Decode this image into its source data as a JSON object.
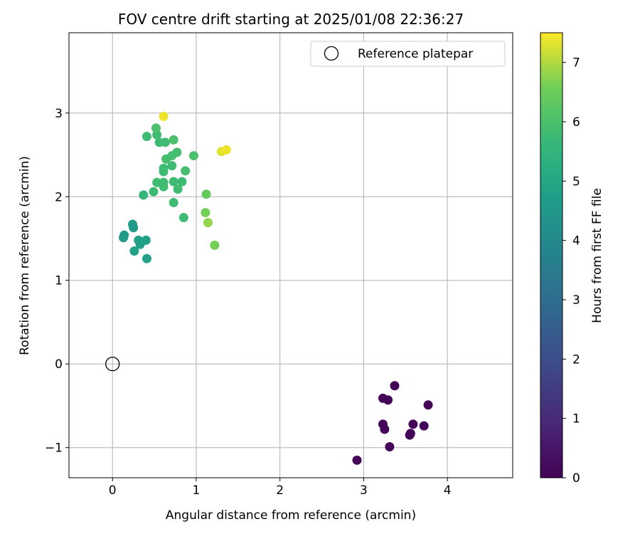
{
  "chart_data": {
    "type": "scatter",
    "title": "FOV centre drift starting at 2025/01/08 22:36:27",
    "xlabel": "Angular distance from reference (arcmin)",
    "ylabel": "Rotation from reference (arcmin)",
    "xlim": [
      -0.52,
      4.78
    ],
    "ylim": [
      -1.36,
      3.96
    ],
    "xticks": [
      0,
      1,
      2,
      3,
      4
    ],
    "yticks": [
      -1,
      0,
      1,
      2,
      3
    ],
    "grid": true,
    "legend": {
      "label": "Reference platepar",
      "placement": "top-right"
    },
    "reference_point": {
      "x": 0,
      "y": 0
    },
    "colorbar": {
      "label": "Hours from first FF file",
      "range": [
        0,
        7.5
      ],
      "ticks": [
        0,
        1,
        2,
        3,
        4,
        5,
        6,
        7
      ],
      "colormap": "viridis"
    },
    "points": [
      {
        "x": 3.37,
        "y": -0.26,
        "h": 0.1
      },
      {
        "x": 3.23,
        "y": -0.41,
        "h": 0.1
      },
      {
        "x": 3.29,
        "y": -0.43,
        "h": 0.1
      },
      {
        "x": 3.77,
        "y": -0.49,
        "h": 0.1
      },
      {
        "x": 3.23,
        "y": -0.72,
        "h": 0.1
      },
      {
        "x": 3.59,
        "y": -0.72,
        "h": 0.1
      },
      {
        "x": 3.72,
        "y": -0.74,
        "h": 0.1
      },
      {
        "x": 3.25,
        "y": -0.78,
        "h": 0.1
      },
      {
        "x": 3.56,
        "y": -0.83,
        "h": 0.1
      },
      {
        "x": 3.55,
        "y": -0.85,
        "h": 0.1
      },
      {
        "x": 3.31,
        "y": -0.99,
        "h": 0.1
      },
      {
        "x": 2.92,
        "y": -1.15,
        "h": 0.1
      },
      {
        "x": 0.41,
        "y": 1.26,
        "h": 4.8
      },
      {
        "x": 0.26,
        "y": 1.35,
        "h": 4.8
      },
      {
        "x": 0.33,
        "y": 1.43,
        "h": 4.8
      },
      {
        "x": 0.31,
        "y": 1.48,
        "h": 4.8
      },
      {
        "x": 0.4,
        "y": 1.48,
        "h": 4.8
      },
      {
        "x": 0.13,
        "y": 1.51,
        "h": 4.6
      },
      {
        "x": 0.14,
        "y": 1.54,
        "h": 4.6
      },
      {
        "x": 0.25,
        "y": 1.63,
        "h": 4.6
      },
      {
        "x": 0.24,
        "y": 1.67,
        "h": 4.6
      },
      {
        "x": 0.37,
        "y": 2.02,
        "h": 5.6
      },
      {
        "x": 0.49,
        "y": 2.06,
        "h": 5.8
      },
      {
        "x": 0.73,
        "y": 1.93,
        "h": 5.8
      },
      {
        "x": 0.85,
        "y": 1.75,
        "h": 5.8
      },
      {
        "x": 0.78,
        "y": 2.09,
        "h": 5.8
      },
      {
        "x": 0.61,
        "y": 2.12,
        "h": 5.8
      },
      {
        "x": 0.53,
        "y": 2.17,
        "h": 5.8
      },
      {
        "x": 0.61,
        "y": 2.17,
        "h": 5.8
      },
      {
        "x": 0.73,
        "y": 2.18,
        "h": 5.8
      },
      {
        "x": 0.83,
        "y": 2.18,
        "h": 5.8
      },
      {
        "x": 0.61,
        "y": 2.3,
        "h": 5.8
      },
      {
        "x": 0.61,
        "y": 2.34,
        "h": 5.8
      },
      {
        "x": 0.71,
        "y": 2.37,
        "h": 5.8
      },
      {
        "x": 0.87,
        "y": 2.31,
        "h": 5.9
      },
      {
        "x": 0.64,
        "y": 2.45,
        "h": 5.9
      },
      {
        "x": 0.71,
        "y": 2.49,
        "h": 5.9
      },
      {
        "x": 0.77,
        "y": 2.53,
        "h": 5.9
      },
      {
        "x": 0.97,
        "y": 2.49,
        "h": 6.0
      },
      {
        "x": 0.56,
        "y": 2.65,
        "h": 5.8
      },
      {
        "x": 0.63,
        "y": 2.65,
        "h": 5.8
      },
      {
        "x": 0.41,
        "y": 2.72,
        "h": 5.8
      },
      {
        "x": 0.53,
        "y": 2.74,
        "h": 5.8
      },
      {
        "x": 0.73,
        "y": 2.68,
        "h": 6.0
      },
      {
        "x": 0.52,
        "y": 2.82,
        "h": 6.0
      },
      {
        "x": 1.12,
        "y": 2.03,
        "h": 6.4
      },
      {
        "x": 1.11,
        "y": 1.81,
        "h": 6.6
      },
      {
        "x": 1.14,
        "y": 1.69,
        "h": 6.8
      },
      {
        "x": 1.22,
        "y": 1.42,
        "h": 6.6
      },
      {
        "x": 1.3,
        "y": 2.54,
        "h": 7.3
      },
      {
        "x": 1.36,
        "y": 2.56,
        "h": 7.4
      },
      {
        "x": 0.61,
        "y": 2.96,
        "h": 7.4
      }
    ]
  }
}
